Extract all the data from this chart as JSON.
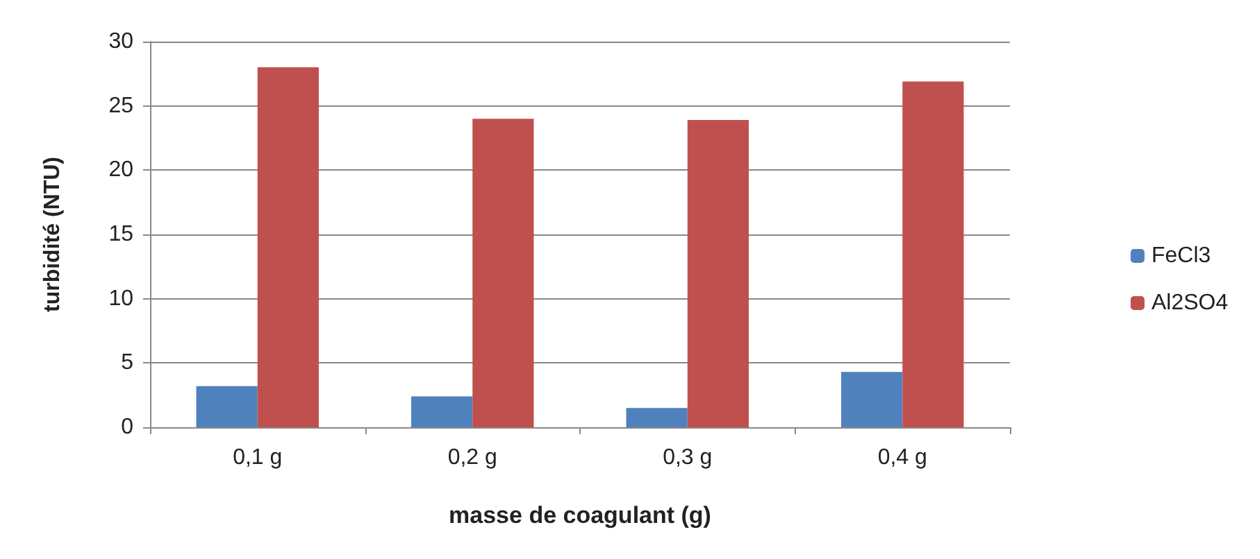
{
  "chart_data": {
    "type": "bar",
    "xlabel": "masse de coagulant (g)",
    "ylabel": "turbidité (NTU)",
    "categories": [
      "0,1 g",
      "0,2 g",
      "0,3 g",
      "0,4 g"
    ],
    "series": [
      {
        "name": "FeCl3",
        "color": "#4f81bd",
        "values": [
          3.2,
          2.4,
          1.5,
          4.3
        ]
      },
      {
        "name": "Al2SO4",
        "color": "#c0504d",
        "values": [
          28,
          24,
          23.9,
          26.9
        ]
      }
    ],
    "ylim": [
      0,
      30
    ],
    "yticks": [
      0,
      5,
      10,
      15,
      20,
      25,
      30
    ],
    "grid": "y",
    "legend": "right"
  }
}
